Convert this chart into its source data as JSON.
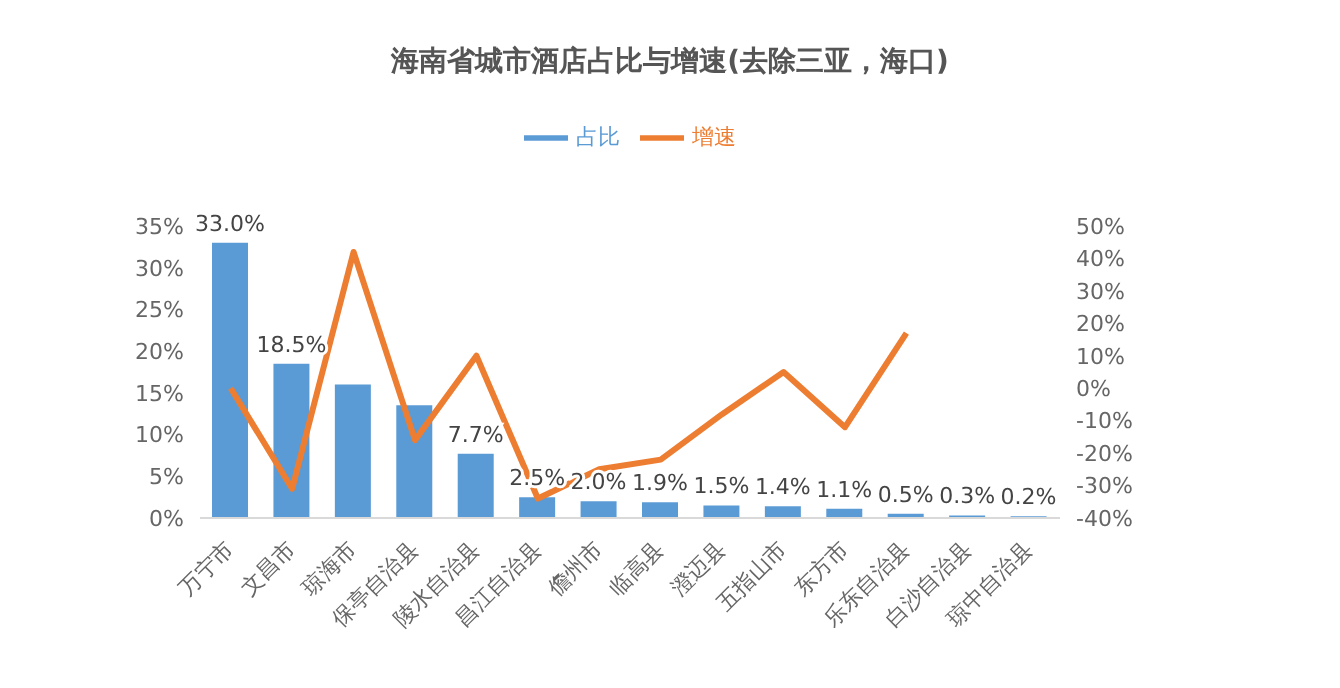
{
  "chart_data": {
    "type": "bar",
    "title": "海南省城市酒店占比与增速(去除三亚，海口)",
    "categories": [
      "万宁市",
      "文昌市",
      "琼海市",
      "保亭自治县",
      "陵水自治县",
      "昌江自治县",
      "儋州市",
      "临高县",
      "澄迈县",
      "五指山市",
      "东方市",
      "乐东自治县",
      "白沙自治县",
      "琼中自治县"
    ],
    "series": [
      {
        "name": "占比",
        "color": "#5b9bd5",
        "values": [
          33.0,
          18.5,
          16,
          13.5,
          7.7,
          2.5,
          2.0,
          1.9,
          1.5,
          1.4,
          1.1,
          0.5,
          0.3,
          0.2
        ],
        "value_labels": [
          "33.0%",
          "18.5%",
          null,
          null,
          "7.7%",
          "2.5%",
          "2.0%",
          "1.9%",
          "1.5%",
          "1.4%",
          "1.1%",
          "0.5%",
          "0.3%",
          "0.2%"
        ]
      },
      {
        "name": "增速",
        "type": "line",
        "axis": "y2",
        "color": "#ed7d31",
        "values": [
          0,
          -31,
          42,
          -16,
          10,
          -34,
          -25,
          -22,
          -8,
          5,
          -12,
          17,
          null,
          null
        ]
      }
    ],
    "ylim": [
      0,
      35
    ],
    "yticks": [
      {
        "value": 0,
        "label": "0%"
      },
      {
        "value": 5,
        "label": "5%"
      },
      {
        "value": 10,
        "label": "10%"
      },
      {
        "value": 15,
        "label": "15%"
      },
      {
        "value": 20,
        "label": "20%"
      },
      {
        "value": 25,
        "label": "25%"
      },
      {
        "value": 30,
        "label": "30%"
      },
      {
        "value": 35,
        "label": "35%"
      }
    ],
    "y2lim": [
      -40,
      50
    ],
    "y2ticks": [
      {
        "value": -40,
        "label": "-40%"
      },
      {
        "value": -30,
        "label": "-30%"
      },
      {
        "value": -20,
        "label": "-20%"
      },
      {
        "value": -10,
        "label": "-10%"
      },
      {
        "value": 0,
        "label": "0%"
      },
      {
        "value": 10,
        "label": "10%"
      },
      {
        "value": 20,
        "label": "20%"
      },
      {
        "value": 30,
        "label": "30%"
      },
      {
        "value": 40,
        "label": "40%"
      },
      {
        "value": 50,
        "label": "50%"
      }
    ],
    "legend": "top",
    "grid": false,
    "marker": "none"
  }
}
